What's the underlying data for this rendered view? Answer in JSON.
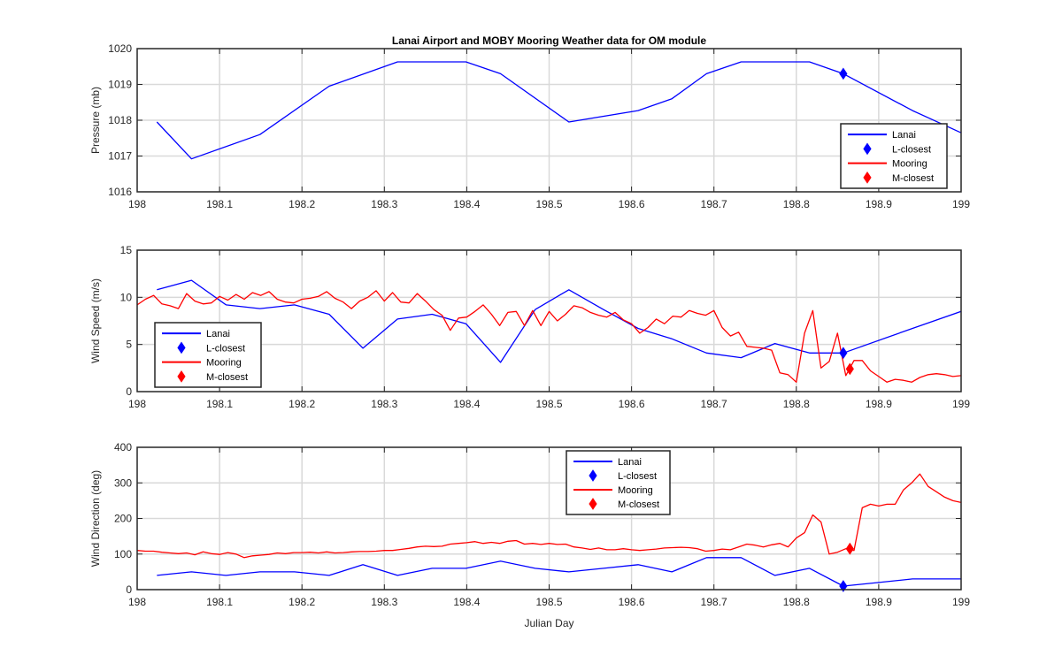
{
  "chart_data": [
    {
      "type": "line",
      "title": "Lanai Airport and MOBY Mooring Weather data for OM module",
      "xlabel": "",
      "ylabel": "Pressure (mb)",
      "xlim": [
        198,
        199
      ],
      "ylim": [
        1016,
        1020
      ],
      "xticks": [
        198,
        198.1,
        198.2,
        198.3,
        198.4,
        198.5,
        198.6,
        198.7,
        198.8,
        198.9,
        199
      ],
      "xtick_labels": [
        "198",
        "198.1",
        "198.2",
        "198.3",
        "198.4",
        "198.5",
        "198.6",
        "198.7",
        "198.8",
        "198.9",
        "199"
      ],
      "yticks": [
        1016,
        1017,
        1018,
        1019,
        1020
      ],
      "ytick_labels": [
        "1016",
        "1017",
        "1018",
        "1019",
        "1020"
      ],
      "grid": true,
      "legend_position": "bottom-right",
      "legend": [
        "Lanai",
        "L-closest",
        "Mooring",
        "M-closest"
      ],
      "series": [
        {
          "name": "Lanai",
          "color": "#0000ff",
          "kind": "line",
          "x": [
            198.024,
            198.066,
            198.149,
            198.233,
            198.316,
            198.399,
            198.441,
            198.524,
            198.608,
            198.649,
            198.691,
            198.733,
            198.774,
            198.816,
            198.857,
            198.941,
            199.0
          ],
          "y": [
            1017.95,
            1016.92,
            1017.6,
            1018.95,
            1019.63,
            1019.63,
            1019.3,
            1017.95,
            1018.27,
            1018.6,
            1019.3,
            1019.63,
            1019.63,
            1019.63,
            1019.3,
            1018.27,
            1017.65
          ]
        },
        {
          "name": "L-closest",
          "color": "#0000ff",
          "kind": "marker",
          "x": [
            198.857
          ],
          "y": [
            1019.3
          ]
        }
      ]
    },
    {
      "type": "line",
      "title": "",
      "xlabel": "",
      "ylabel": "Wind Speed (m/s)",
      "xlim": [
        198,
        199
      ],
      "ylim": [
        0,
        15
      ],
      "xticks": [
        198,
        198.1,
        198.2,
        198.3,
        198.4,
        198.5,
        198.6,
        198.7,
        198.8,
        198.9,
        199
      ],
      "xtick_labels": [
        "198",
        "198.1",
        "198.2",
        "198.3",
        "198.4",
        "198.5",
        "198.6",
        "198.7",
        "198.8",
        "198.9",
        "199"
      ],
      "yticks": [
        0,
        5,
        10,
        15
      ],
      "ytick_labels": [
        "0",
        "5",
        "10",
        "15"
      ],
      "grid": true,
      "legend_position": "bottom-left",
      "legend": [
        "Lanai",
        "L-closest",
        "Mooring",
        "M-closest"
      ],
      "series": [
        {
          "name": "Lanai",
          "color": "#0000ff",
          "kind": "line",
          "x": [
            198.024,
            198.066,
            198.108,
            198.149,
            198.191,
            198.233,
            198.274,
            198.316,
            198.358,
            198.399,
            198.441,
            198.483,
            198.524,
            198.566,
            198.608,
            198.649,
            198.691,
            198.733,
            198.774,
            198.816,
            198.857,
            198.941,
            199.0
          ],
          "y": [
            10.8,
            11.8,
            9.2,
            8.8,
            9.2,
            8.2,
            4.6,
            7.7,
            8.2,
            7.2,
            3.1,
            8.7,
            10.8,
            8.7,
            6.7,
            5.6,
            4.1,
            3.6,
            5.1,
            4.1,
            4.1,
            6.7,
            8.5
          ]
        },
        {
          "name": "L-closest",
          "color": "#0000ff",
          "kind": "marker",
          "x": [
            198.857
          ],
          "y": [
            4.1
          ]
        },
        {
          "name": "Mooring",
          "color": "#ff0000",
          "kind": "line",
          "x": [
            198.0,
            198.01,
            198.02,
            198.03,
            198.04,
            198.05,
            198.06,
            198.07,
            198.08,
            198.09,
            198.1,
            198.11,
            198.12,
            198.13,
            198.14,
            198.15,
            198.16,
            198.17,
            198.18,
            198.19,
            198.2,
            198.21,
            198.22,
            198.23,
            198.24,
            198.25,
            198.26,
            198.27,
            198.28,
            198.29,
            198.3,
            198.31,
            198.32,
            198.33,
            198.34,
            198.35,
            198.36,
            198.37,
            198.38,
            198.39,
            198.4,
            198.41,
            198.42,
            198.43,
            198.44,
            198.45,
            198.46,
            198.47,
            198.48,
            198.49,
            198.5,
            198.51,
            198.52,
            198.53,
            198.54,
            198.55,
            198.56,
            198.57,
            198.58,
            198.59,
            198.6,
            198.61,
            198.62,
            198.63,
            198.64,
            198.65,
            198.66,
            198.67,
            198.68,
            198.69,
            198.7,
            198.71,
            198.72,
            198.73,
            198.74,
            198.75,
            198.76,
            198.77,
            198.78,
            198.79,
            198.8,
            198.81,
            198.82,
            198.83,
            198.84,
            198.85,
            198.86,
            198.87,
            198.88,
            198.89,
            198.9,
            198.91,
            198.92,
            198.93,
            198.94,
            198.95,
            198.96,
            198.97,
            198.98,
            198.99,
            199.0
          ],
          "y": [
            9.2,
            9.8,
            10.2,
            9.3,
            9.1,
            8.8,
            10.4,
            9.6,
            9.3,
            9.4,
            10.1,
            9.7,
            10.3,
            9.8,
            10.5,
            10.2,
            10.6,
            9.8,
            9.5,
            9.4,
            9.8,
            9.9,
            10.1,
            10.6,
            9.9,
            9.5,
            8.8,
            9.6,
            10.0,
            10.7,
            9.6,
            10.5,
            9.5,
            9.4,
            10.4,
            9.6,
            8.7,
            8.1,
            6.5,
            7.8,
            7.9,
            8.5,
            9.2,
            8.2,
            7.0,
            8.4,
            8.5,
            7.0,
            8.6,
            7.0,
            8.5,
            7.5,
            8.2,
            9.1,
            8.9,
            8.4,
            8.1,
            7.9,
            8.4,
            7.6,
            7.2,
            6.2,
            6.8,
            7.7,
            7.2,
            8.0,
            7.9,
            8.6,
            8.3,
            8.1,
            8.6,
            6.8,
            5.9,
            6.3,
            4.8,
            4.7,
            4.6,
            4.4,
            2.0,
            1.8,
            1.0,
            6.2,
            8.6,
            2.5,
            3.2,
            6.2,
            1.7,
            3.3,
            3.3,
            2.2,
            1.6,
            1.0,
            1.3,
            1.2,
            1.0,
            1.5,
            1.8,
            1.9,
            1.8,
            1.6,
            1.7
          ]
        },
        {
          "name": "M-closest",
          "color": "#ff0000",
          "kind": "marker",
          "x": [
            198.865
          ],
          "y": [
            2.4
          ]
        }
      ]
    },
    {
      "type": "line",
      "title": "",
      "xlabel": "Julian Day",
      "ylabel": "Wind Direction (deg)",
      "xlim": [
        198,
        199
      ],
      "ylim": [
        0,
        400
      ],
      "xticks": [
        198,
        198.1,
        198.2,
        198.3,
        198.4,
        198.5,
        198.6,
        198.7,
        198.8,
        198.9,
        199
      ],
      "xtick_labels": [
        "198",
        "198.1",
        "198.2",
        "198.3",
        "198.4",
        "198.5",
        "198.6",
        "198.7",
        "198.8",
        "198.9",
        "199"
      ],
      "yticks": [
        0,
        100,
        200,
        300,
        400
      ],
      "ytick_labels": [
        "0",
        "100",
        "200",
        "300",
        "400"
      ],
      "grid": true,
      "legend_position": "top-center",
      "legend": [
        "Lanai",
        "L-closest",
        "Mooring",
        "M-closest"
      ],
      "series": [
        {
          "name": "Lanai",
          "color": "#0000ff",
          "kind": "line",
          "x": [
            198.024,
            198.066,
            198.108,
            198.149,
            198.191,
            198.233,
            198.274,
            198.316,
            198.358,
            198.399,
            198.441,
            198.483,
            198.524,
            198.566,
            198.608,
            198.649,
            198.691,
            198.733,
            198.774,
            198.816,
            198.857,
            198.899,
            198.941,
            199.0
          ],
          "y": [
            40,
            50,
            40,
            50,
            50,
            40,
            70,
            40,
            60,
            60,
            80,
            60,
            50,
            60,
            70,
            50,
            90,
            90,
            40,
            60,
            10,
            20,
            30,
            30
          ]
        },
        {
          "name": "L-closest",
          "color": "#0000ff",
          "kind": "marker",
          "x": [
            198.857
          ],
          "y": [
            10
          ]
        },
        {
          "name": "Mooring",
          "color": "#ff0000",
          "kind": "line",
          "x": [
            198.0,
            198.01,
            198.02,
            198.03,
            198.04,
            198.05,
            198.06,
            198.07,
            198.08,
            198.09,
            198.1,
            198.11,
            198.12,
            198.13,
            198.14,
            198.15,
            198.16,
            198.17,
            198.18,
            198.19,
            198.2,
            198.21,
            198.22,
            198.23,
            198.24,
            198.25,
            198.26,
            198.27,
            198.28,
            198.29,
            198.3,
            198.31,
            198.32,
            198.33,
            198.34,
            198.35,
            198.36,
            198.37,
            198.38,
            198.39,
            198.4,
            198.41,
            198.42,
            198.43,
            198.44,
            198.45,
            198.46,
            198.47,
            198.48,
            198.49,
            198.5,
            198.51,
            198.52,
            198.53,
            198.54,
            198.55,
            198.56,
            198.57,
            198.58,
            198.59,
            198.6,
            198.61,
            198.62,
            198.63,
            198.64,
            198.65,
            198.66,
            198.67,
            198.68,
            198.69,
            198.7,
            198.71,
            198.72,
            198.73,
            198.74,
            198.75,
            198.76,
            198.77,
            198.78,
            198.79,
            198.8,
            198.81,
            198.82,
            198.83,
            198.84,
            198.85,
            198.86,
            198.87,
            198.88,
            198.89,
            198.9,
            198.91,
            198.92,
            198.93,
            198.94,
            198.95,
            198.96,
            198.97,
            198.98,
            198.99,
            199.0
          ],
          "y": [
            110,
            108,
            108,
            105,
            103,
            101,
            103,
            98,
            106,
            101,
            99,
            104,
            100,
            90,
            95,
            97,
            99,
            103,
            101,
            104,
            104,
            105,
            103,
            106,
            103,
            104,
            106,
            107,
            107,
            108,
            110,
            110,
            113,
            116,
            120,
            122,
            121,
            122,
            128,
            130,
            132,
            135,
            130,
            133,
            130,
            136,
            138,
            128,
            130,
            127,
            130,
            127,
            128,
            120,
            117,
            113,
            117,
            112,
            112,
            115,
            112,
            110,
            112,
            114,
            117,
            118,
            119,
            118,
            115,
            108,
            110,
            114,
            112,
            120,
            128,
            125,
            120,
            126,
            130,
            120,
            145,
            160,
            210,
            190,
            100,
            105,
            115,
            110,
            230,
            240,
            235,
            240,
            240,
            280,
            300,
            325,
            290,
            275,
            260,
            250,
            245
          ]
        },
        {
          "name": "M-closest",
          "color": "#ff0000",
          "kind": "marker",
          "x": [
            198.865
          ],
          "y": [
            115
          ]
        }
      ]
    }
  ]
}
